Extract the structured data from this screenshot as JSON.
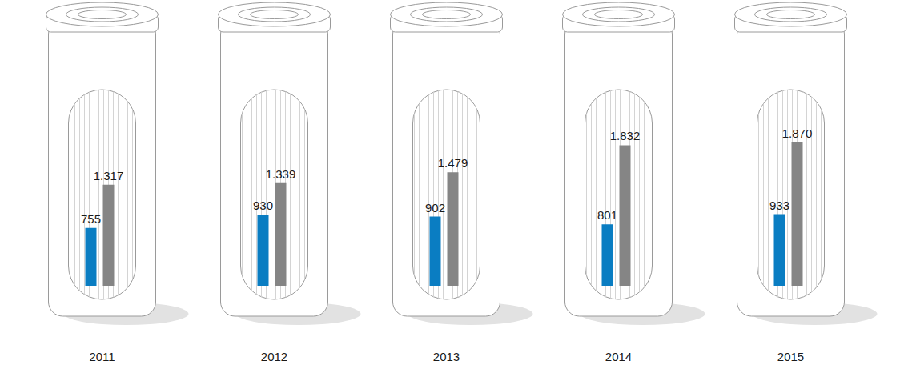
{
  "chart_data": {
    "type": "bar",
    "categories": [
      "2011",
      "2012",
      "2013",
      "2014",
      "2015"
    ],
    "series": [
      {
        "color": "#0a7dc2",
        "values": [
          755,
          930,
          902,
          801,
          933
        ]
      },
      {
        "color": "#858585",
        "values": [
          1317,
          1339,
          1479,
          1832,
          1870
        ],
        "value_labels": [
          "1.317",
          "1.339",
          "1.479",
          "1.832",
          "1.870"
        ]
      }
    ],
    "ylim": [
      0,
      3600
    ],
    "grid": false,
    "data_labels": true,
    "tick_labels": "x"
  }
}
